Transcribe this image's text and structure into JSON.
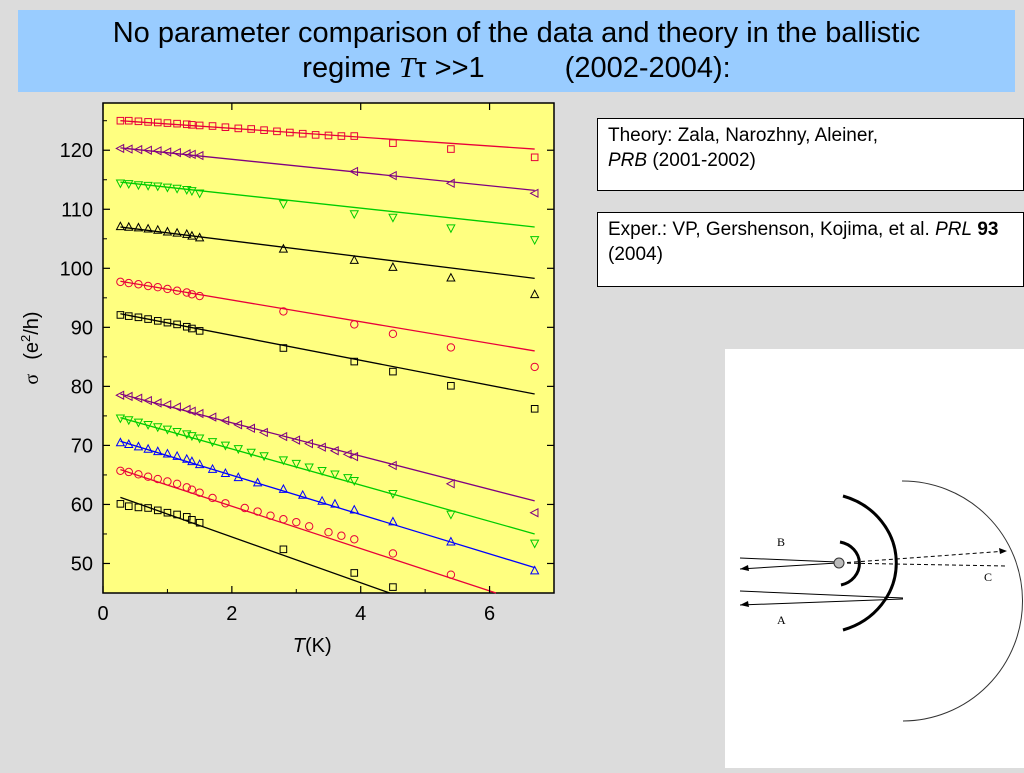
{
  "title": {
    "line1": "No parameter comparison of the data and theory in the ballistic",
    "line2_prefix": "regime ",
    "symbol_T": "T",
    "symbol_tau": "τ",
    "line2_cond": " >>1",
    "line2_years": "(2002-2004):"
  },
  "references": [
    {
      "text": "Theory: Zala, Narozhny, Aleiner,",
      "journal": "PRB",
      "rest": " (2001-2002)"
    },
    {
      "text": "Exper.: VP, Gershenson, Kojima, et al.",
      "journal": "PRL",
      "volume": "93",
      "rest": " (2004)"
    }
  ],
  "diagram": {
    "label_a": "A",
    "label_b": "B",
    "label_c": "C"
  },
  "colors": {
    "plot_bg": "#ffff80",
    "title_bg": "#99ccff",
    "slide_bg": "#dcdcdc"
  },
  "chart_data": {
    "type": "scatter",
    "title": "",
    "xlabel_italic": "T",
    "xlabel_unit": " (K)",
    "ylabel_sigma": "σ",
    "ylabel_unit_pre": "(e",
    "ylabel_unit_sup": "2",
    "ylabel_unit_post": "/h)",
    "xlim": [
      0,
      7
    ],
    "ylim": [
      45,
      128
    ],
    "x_ticks": [
      0,
      2,
      4,
      6
    ],
    "y_ticks": [
      50,
      60,
      70,
      80,
      90,
      100,
      110,
      120
    ],
    "series": [
      {
        "marker": "square",
        "color": "#e8003a",
        "x": [
          0.27,
          0.4,
          0.55,
          0.7,
          0.85,
          1.0,
          1.15,
          1.3,
          1.38,
          1.5,
          1.7,
          1.9,
          2.1,
          2.3,
          2.5,
          2.7,
          2.9,
          3.1,
          3.3,
          3.5,
          3.7,
          3.9,
          4.5,
          5.4,
          6.7
        ],
        "y": [
          125.0,
          125.0,
          124.9,
          124.8,
          124.7,
          124.6,
          124.5,
          124.4,
          124.3,
          124.2,
          124.1,
          123.9,
          123.7,
          123.6,
          123.4,
          123.2,
          123.0,
          122.8,
          122.6,
          122.5,
          122.4,
          122.4,
          121.2,
          120.2,
          118.8
        ],
        "fit": [
          0.27,
          125.0,
          6.7,
          120.2
        ]
      },
      {
        "marker": "triangle-left",
        "color": "#800080",
        "x": [
          0.27,
          0.4,
          0.55,
          0.7,
          0.85,
          1.0,
          1.15,
          1.3,
          1.38,
          1.5,
          3.9,
          4.5,
          5.4,
          6.7
        ],
        "y": [
          120.3,
          120.2,
          120.1,
          120.0,
          119.9,
          119.7,
          119.6,
          119.4,
          119.3,
          119.1,
          116.4,
          115.7,
          114.4,
          112.7
        ],
        "fit": [
          0.27,
          120.4,
          6.7,
          113.2
        ]
      },
      {
        "marker": "triangle-down",
        "color": "#00cc00",
        "x": [
          0.27,
          0.4,
          0.55,
          0.7,
          0.85,
          1.0,
          1.15,
          1.3,
          1.38,
          1.5,
          2.8,
          3.9,
          4.5,
          5.4,
          6.7
        ],
        "y": [
          114.4,
          114.3,
          114.1,
          114.0,
          113.9,
          113.7,
          113.5,
          113.3,
          113.1,
          112.7,
          110.9,
          109.2,
          108.6,
          106.8,
          104.8
        ],
        "fit": [
          0.27,
          114.6,
          6.7,
          107.0
        ]
      },
      {
        "marker": "triangle-up",
        "color": "#000000",
        "x": [
          0.27,
          0.4,
          0.55,
          0.7,
          0.85,
          1.0,
          1.15,
          1.3,
          1.38,
          1.5,
          2.8,
          3.9,
          4.5,
          5.4,
          6.7
        ],
        "y": [
          107.1,
          107.0,
          106.9,
          106.7,
          106.5,
          106.2,
          106.0,
          105.8,
          105.5,
          105.2,
          103.3,
          101.4,
          100.2,
          98.4,
          95.6
        ],
        "fit": [
          0.27,
          107.0,
          6.7,
          98.3
        ]
      },
      {
        "marker": "circle",
        "color": "#e8003a",
        "x": [
          0.27,
          0.4,
          0.55,
          0.7,
          0.85,
          1.0,
          1.15,
          1.3,
          1.38,
          1.5,
          2.8,
          3.9,
          4.5,
          5.4,
          6.7
        ],
        "y": [
          97.7,
          97.5,
          97.3,
          97.0,
          96.8,
          96.5,
          96.2,
          95.9,
          95.6,
          95.3,
          92.7,
          90.5,
          88.9,
          86.6,
          83.3
        ],
        "fit": [
          0.27,
          97.8,
          6.7,
          86.0
        ]
      },
      {
        "marker": "square",
        "color": "#000000",
        "x": [
          0.27,
          0.4,
          0.55,
          0.7,
          0.85,
          1.0,
          1.15,
          1.3,
          1.38,
          1.5,
          2.8,
          3.9,
          4.5,
          5.4,
          6.7
        ],
        "y": [
          92.1,
          91.9,
          91.7,
          91.4,
          91.1,
          90.8,
          90.5,
          90.1,
          89.8,
          89.4,
          86.5,
          84.2,
          82.5,
          80.1,
          76.2
        ],
        "fit": [
          0.27,
          92.3,
          6.7,
          78.7
        ]
      },
      {
        "marker": "triangle-left",
        "color": "#800080",
        "x": [
          0.27,
          0.4,
          0.55,
          0.7,
          0.85,
          1.0,
          1.15,
          1.3,
          1.38,
          1.5,
          1.7,
          1.9,
          2.1,
          2.3,
          2.5,
          2.8,
          3.0,
          3.2,
          3.4,
          3.6,
          3.8,
          3.9,
          4.5,
          5.4,
          6.7
        ],
        "y": [
          78.5,
          78.3,
          78.0,
          77.6,
          77.2,
          76.9,
          76.5,
          76.1,
          75.8,
          75.4,
          74.8,
          74.2,
          73.5,
          72.9,
          72.2,
          71.5,
          70.9,
          70.3,
          69.7,
          69.1,
          68.5,
          68.1,
          66.6,
          63.5,
          58.6
        ],
        "fit": [
          0.27,
          78.7,
          6.7,
          60.6
        ]
      },
      {
        "marker": "triangle-down",
        "color": "#00cc00",
        "x": [
          0.27,
          0.4,
          0.55,
          0.7,
          0.85,
          1.0,
          1.15,
          1.3,
          1.38,
          1.5,
          1.7,
          1.9,
          2.1,
          2.3,
          2.5,
          2.8,
          3.0,
          3.2,
          3.4,
          3.6,
          3.8,
          3.9,
          4.5,
          5.4,
          6.7
        ],
        "y": [
          74.6,
          74.3,
          73.9,
          73.5,
          73.1,
          72.7,
          72.3,
          71.9,
          71.6,
          71.2,
          70.6,
          70.0,
          69.4,
          68.8,
          68.2,
          67.5,
          66.9,
          66.3,
          65.7,
          65.1,
          64.5,
          64.0,
          61.8,
          58.3,
          53.4
        ],
        "fit": [
          0.27,
          74.7,
          6.7,
          55.0
        ]
      },
      {
        "marker": "triangle-up",
        "color": "#0000ff",
        "x": [
          0.27,
          0.4,
          0.55,
          0.7,
          0.85,
          1.0,
          1.15,
          1.3,
          1.38,
          1.5,
          1.7,
          1.9,
          2.1,
          2.4,
          2.8,
          3.1,
          3.4,
          3.6,
          3.9,
          4.5,
          5.4,
          6.7
        ],
        "y": [
          70.5,
          70.2,
          69.8,
          69.4,
          69.0,
          68.6,
          68.2,
          67.7,
          67.3,
          66.8,
          66.0,
          65.3,
          64.6,
          63.7,
          62.6,
          61.6,
          60.6,
          60.1,
          59.1,
          57.1,
          53.7,
          48.8
        ],
        "fit": [
          0.27,
          70.7,
          6.7,
          49.3
        ]
      },
      {
        "marker": "circle",
        "color": "#e8003a",
        "x": [
          0.27,
          0.4,
          0.55,
          0.7,
          0.85,
          1.0,
          1.15,
          1.3,
          1.38,
          1.5,
          1.7,
          1.9,
          2.2,
          2.4,
          2.6,
          2.8,
          3.0,
          3.2,
          3.5,
          3.7,
          3.9,
          4.5,
          5.4
        ],
        "y": [
          65.7,
          65.5,
          65.1,
          64.7,
          64.3,
          63.9,
          63.5,
          62.9,
          62.5,
          62.0,
          61.1,
          60.2,
          59.4,
          58.8,
          58.1,
          57.5,
          57.0,
          56.3,
          55.3,
          54.7,
          54.1,
          51.7,
          48.1
        ],
        "fit": [
          0.27,
          65.9,
          6.1,
          45.0
        ]
      },
      {
        "marker": "square",
        "color": "#000000",
        "x": [
          0.27,
          0.4,
          0.55,
          0.7,
          0.85,
          1.0,
          1.15,
          1.3,
          1.38,
          1.5,
          2.8,
          3.9,
          4.5
        ],
        "y": [
          60.1,
          59.7,
          59.5,
          59.4,
          59.0,
          58.6,
          58.3,
          57.9,
          57.4,
          56.9,
          52.4,
          48.4,
          46.0
        ],
        "fit": [
          0.27,
          61.2,
          4.45,
          45.0
        ]
      }
    ]
  }
}
